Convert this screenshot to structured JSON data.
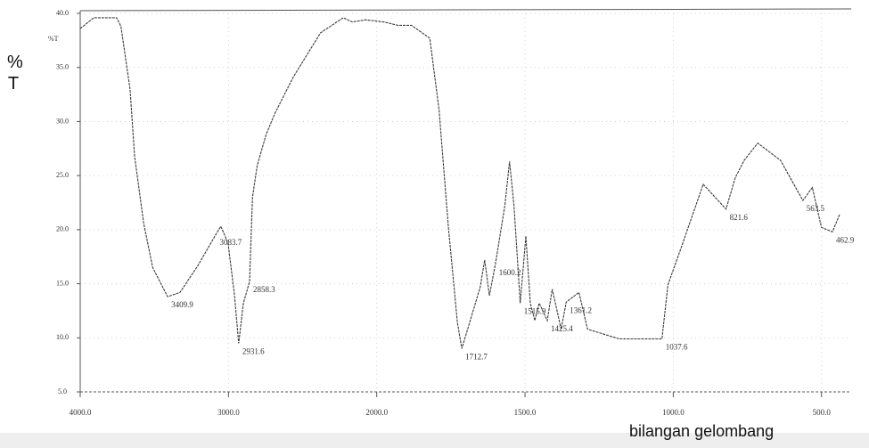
{
  "chart_data": {
    "type": "line",
    "ylabel": "% T",
    "xlabel": "bilangan gelombang",
    "axis_note": "%T",
    "x": [
      4000,
      3908,
      3755,
      3725,
      3664,
      3633,
      3572,
      3511,
      3410,
      3327,
      3205,
      3083,
      3052,
      3003,
      2960,
      2931,
      2899,
      2858,
      2838,
      2807,
      2746,
      2685,
      2563,
      2379,
      2226,
      2165,
      2073,
      1975,
      1929,
      1883,
      1821,
      1790,
      1759,
      1728,
      1713,
      1651,
      1636,
      1620,
      1600,
      1568,
      1552,
      1537,
      1516,
      1497,
      1482,
      1467,
      1452,
      1425,
      1408,
      1378,
      1361,
      1318,
      1289,
      1182,
      1063,
      1038,
      1018,
      975,
      899,
      822,
      791,
      761,
      715,
      638,
      563,
      531,
      500,
      463,
      439
    ],
    "values": [
      38.6,
      39.6,
      39.6,
      38.8,
      33.0,
      26.8,
      20.6,
      16.5,
      13.8,
      14.2,
      16.7,
      19.6,
      20.3,
      18.8,
      14.0,
      9.5,
      13.2,
      15.2,
      23.0,
      25.9,
      28.8,
      30.8,
      34.1,
      38.2,
      39.6,
      39.2,
      39.4,
      39.2,
      38.9,
      38.9,
      37.7,
      31.1,
      20.4,
      11.4,
      9.0,
      14.7,
      17.2,
      13.9,
      16.8,
      22.2,
      26.3,
      22.2,
      13.2,
      19.4,
      13.2,
      11.6,
      13.2,
      11.6,
      14.5,
      10.8,
      13.3,
      14.2,
      10.8,
      9.9,
      9.9,
      9.9,
      14.9,
      18.2,
      24.2,
      21.9,
      24.8,
      26.4,
      28.0,
      26.4,
      22.7,
      23.9,
      20.2,
      19.8,
      21.4
    ],
    "color": "#3a3a3a",
    "annotations": [
      "3409.9",
      "3083.7",
      "2931.6",
      "2858.3",
      "1712.7",
      "1600.2",
      "1515.9",
      "1425.4",
      "1361.2",
      "1037.6",
      "821.6",
      "563.5",
      "462.9"
    ],
    "xlim": [
      4000,
      400
    ],
    "xticks": [
      {
        "value": 4000,
        "label": "4000.0"
      },
      {
        "value": 3000,
        "label": "3000.0"
      },
      {
        "value": 2000,
        "label": "2000.0"
      },
      {
        "value": 1500,
        "label": "1500.0"
      },
      {
        "value": 1000,
        "label": "1000.0"
      },
      {
        "value": 500,
        "label": "500.0"
      }
    ],
    "ylim": [
      5,
      40
    ],
    "yticks": [
      {
        "value": 5,
        "label": "5.0"
      },
      {
        "value": 10,
        "label": "10.0"
      },
      {
        "value": 15,
        "label": "15.0"
      },
      {
        "value": 20,
        "label": "20.0"
      },
      {
        "value": 25,
        "label": "25.0"
      },
      {
        "value": 30,
        "label": "30.0"
      },
      {
        "value": 35,
        "label": "35.0"
      },
      {
        "value": 40,
        "label": "40.0"
      }
    ],
    "grid": true
  }
}
